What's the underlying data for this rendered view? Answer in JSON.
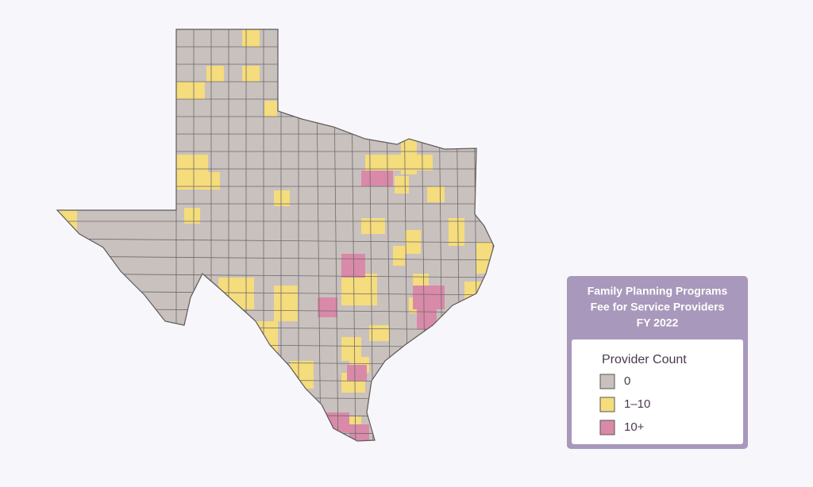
{
  "legend": {
    "title_lines": [
      "Family Planning Programs",
      "Fee for Service Providers",
      "FY 2022"
    ],
    "subtitle": "Provider Count",
    "items": [
      {
        "label": "0",
        "color": "#c9c1be"
      },
      {
        "label": "1–10",
        "color": "#f5dc7c"
      },
      {
        "label": "10+",
        "color": "#d98aa8"
      }
    ]
  }
}
